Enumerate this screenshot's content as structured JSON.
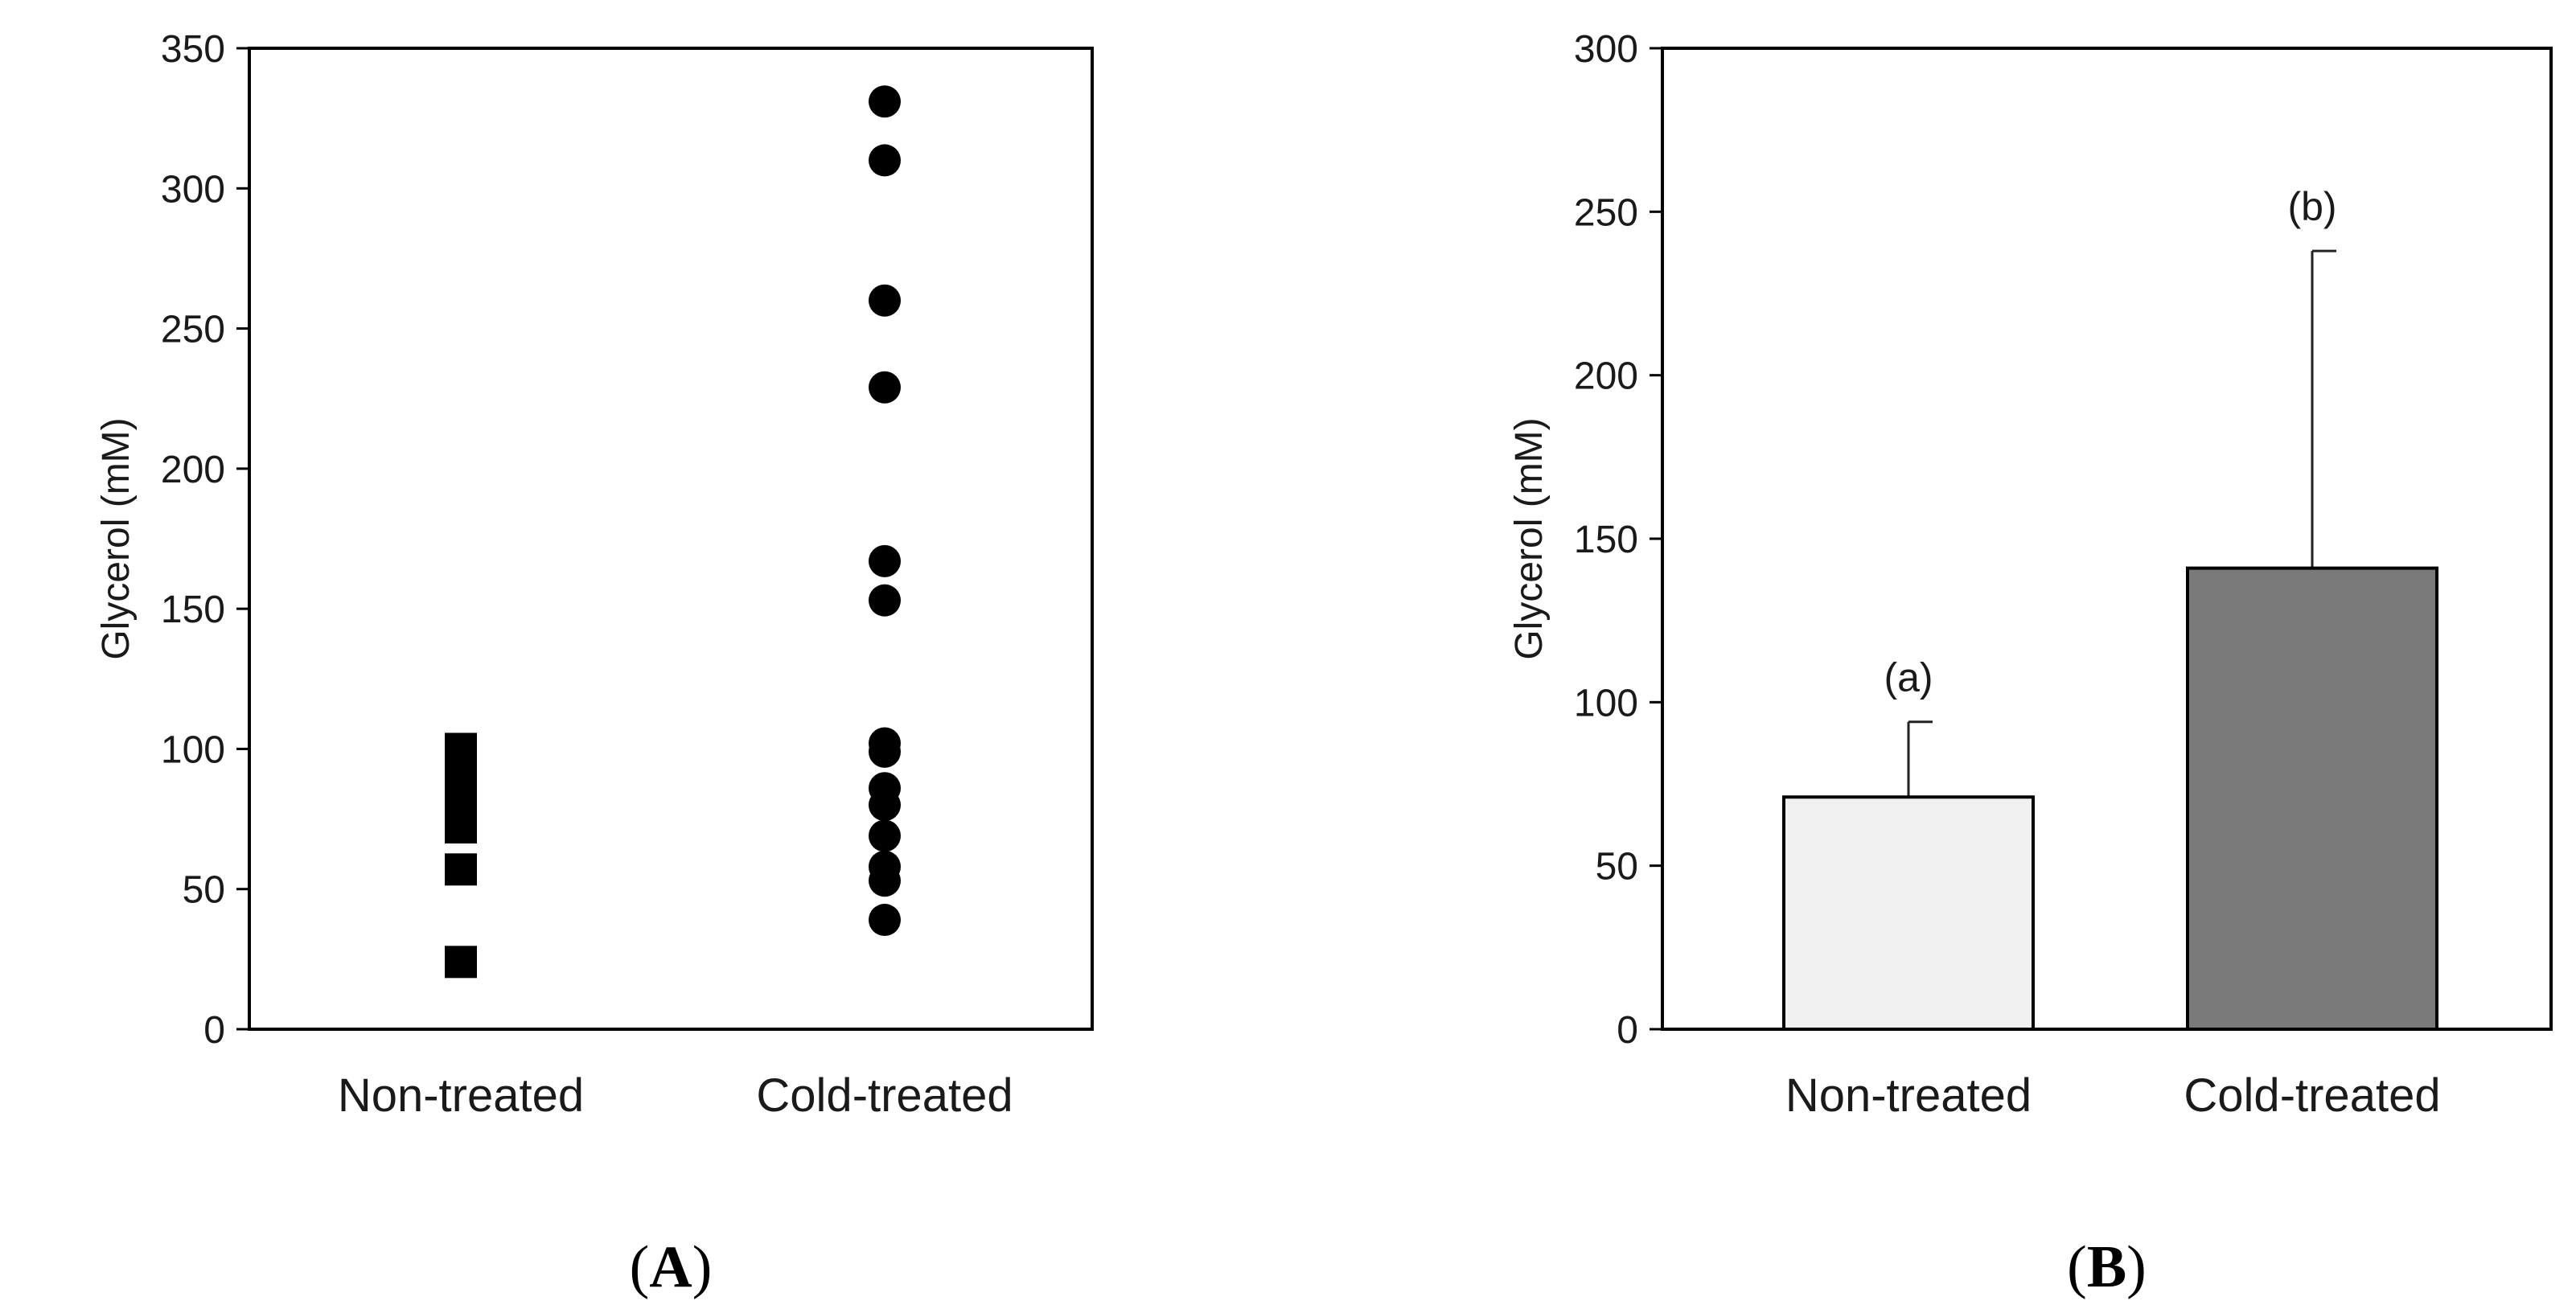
{
  "chart_data": [
    {
      "type": "scatter",
      "panel_label": "A",
      "ylabel": "Glycerol (mM)",
      "ylim": [
        0,
        350
      ],
      "yticks": [
        0,
        50,
        100,
        150,
        200,
        250,
        300,
        350
      ],
      "categories": [
        "Non-treated",
        "Cold-treated"
      ],
      "grid": false,
      "series": [
        {
          "category": "Non-treated",
          "marker": "square",
          "values": [
            100,
            96,
            92,
            88,
            84,
            80,
            76,
            72,
            57,
            24
          ]
        },
        {
          "category": "Cold-treated",
          "marker": "circle",
          "values": [
            331,
            310,
            260,
            229,
            167,
            153,
            102,
            99,
            86,
            80,
            69,
            58,
            53,
            39
          ]
        }
      ]
    },
    {
      "type": "bar",
      "panel_label": "B",
      "ylabel": "Glycerol (mM)",
      "ylim": [
        0,
        300
      ],
      "yticks": [
        0,
        50,
        100,
        150,
        200,
        250,
        300
      ],
      "categories": [
        "Non-treated",
        "Cold-treated"
      ],
      "values": [
        71,
        141
      ],
      "errors": [
        23,
        97
      ],
      "bar_colors": [
        "#f0f0f0",
        "#7a7a7a"
      ],
      "annotations": [
        "(a)",
        "(b)"
      ],
      "grid": false
    }
  ]
}
